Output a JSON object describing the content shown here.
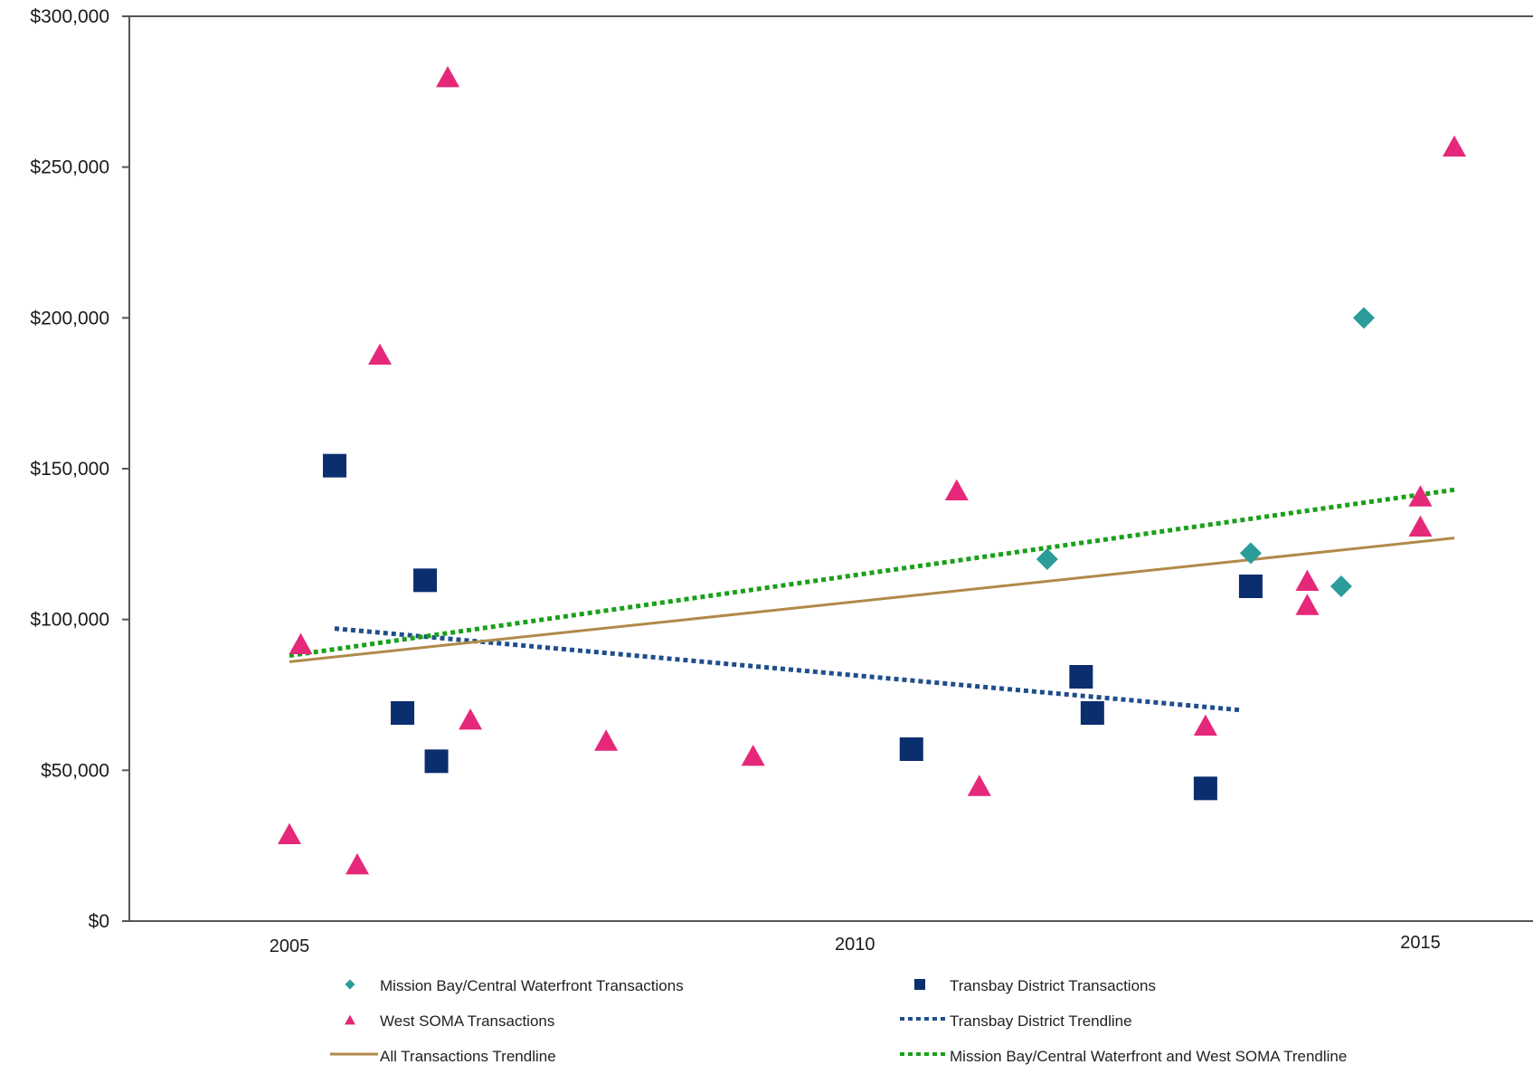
{
  "chart_data": {
    "type": "scatter",
    "title": "",
    "xlabel": "",
    "ylabel": "",
    "xlim": [
      2004.7,
      2015.8
    ],
    "ylim": [
      0,
      300000
    ],
    "yticks": [
      {
        "value": 0,
        "label": "$0"
      },
      {
        "value": 50000,
        "label": "$50,000"
      },
      {
        "value": 100000,
        "label": "$100,000"
      },
      {
        "value": 150000,
        "label": "$150,000"
      },
      {
        "value": 200000,
        "label": "$200,000"
      },
      {
        "value": 250000,
        "label": "$250,000"
      },
      {
        "value": 300000,
        "label": "$300,000"
      }
    ],
    "xticks": [
      {
        "value": 2005,
        "label": "2005"
      },
      {
        "value": 2010,
        "label": "2010"
      },
      {
        "value": 2015,
        "label": "2015"
      }
    ],
    "grid": false,
    "legend_position": "bottom",
    "series": [
      {
        "name": "Mission Bay/Central Waterfront Transactions",
        "kind": "points",
        "marker": "diamond",
        "color": "#2a9d9a",
        "points": [
          {
            "x": 2011.7,
            "y": 120000
          },
          {
            "x": 2013.5,
            "y": 122000
          },
          {
            "x": 2014.3,
            "y": 111000
          },
          {
            "x": 2014.5,
            "y": 200000
          }
        ]
      },
      {
        "name": "Transbay District Transactions",
        "kind": "points",
        "marker": "square",
        "color": "#0b2e6e",
        "points": [
          {
            "x": 2005.4,
            "y": 151000
          },
          {
            "x": 2006.0,
            "y": 69000
          },
          {
            "x": 2006.2,
            "y": 113000
          },
          {
            "x": 2006.3,
            "y": 53000
          },
          {
            "x": 2010.5,
            "y": 57000
          },
          {
            "x": 2012.0,
            "y": 81000
          },
          {
            "x": 2012.1,
            "y": 69000
          },
          {
            "x": 2013.1,
            "y": 44000
          },
          {
            "x": 2013.5,
            "y": 111000
          }
        ]
      },
      {
        "name": "West SOMA Transactions",
        "kind": "points",
        "marker": "triangle",
        "color": "#e5287a",
        "points": [
          {
            "x": 2005.0,
            "y": 29000
          },
          {
            "x": 2005.1,
            "y": 92000
          },
          {
            "x": 2005.6,
            "y": 19000
          },
          {
            "x": 2005.8,
            "y": 188000
          },
          {
            "x": 2006.4,
            "y": 280000
          },
          {
            "x": 2006.6,
            "y": 67000
          },
          {
            "x": 2007.8,
            "y": 60000
          },
          {
            "x": 2009.1,
            "y": 55000
          },
          {
            "x": 2010.9,
            "y": 143000
          },
          {
            "x": 2011.1,
            "y": 45000
          },
          {
            "x": 2013.1,
            "y": 65000
          },
          {
            "x": 2014.0,
            "y": 105000
          },
          {
            "x": 2014.0,
            "y": 113000
          },
          {
            "x": 2015.0,
            "y": 131000
          },
          {
            "x": 2015.0,
            "y": 141000
          },
          {
            "x": 2015.3,
            "y": 257000
          }
        ]
      },
      {
        "name": "Transbay District Trendline",
        "kind": "line",
        "style": "dotted",
        "color": "#1f4e8c",
        "points": [
          {
            "x": 2005.4,
            "y": 97000
          },
          {
            "x": 2013.4,
            "y": 70000
          }
        ]
      },
      {
        "name": "All Transactions Trendline",
        "kind": "line",
        "style": "solid",
        "color": "#b08a4a",
        "points": [
          {
            "x": 2005.0,
            "y": 86000
          },
          {
            "x": 2015.3,
            "y": 127000
          }
        ]
      },
      {
        "name": "Mission Bay/Central Waterfront and West SOMA Trendline",
        "kind": "line",
        "style": "dotted",
        "color": "#1aa01a",
        "points": [
          {
            "x": 2005.0,
            "y": 88000
          },
          {
            "x": 2015.3,
            "y": 143000
          }
        ]
      }
    ],
    "legend": [
      {
        "series": 0,
        "label": "Mission Bay/Central Waterfront Transactions"
      },
      {
        "series": 1,
        "label": "Transbay District Transactions"
      },
      {
        "series": 2,
        "label": "West SOMA Transactions"
      },
      {
        "series": 3,
        "label": "Transbay District Trendline"
      },
      {
        "series": 4,
        "label": "All Transactions Trendline"
      },
      {
        "series": 5,
        "label": "Mission Bay/Central Waterfront and West SOMA Trendline"
      }
    ]
  }
}
